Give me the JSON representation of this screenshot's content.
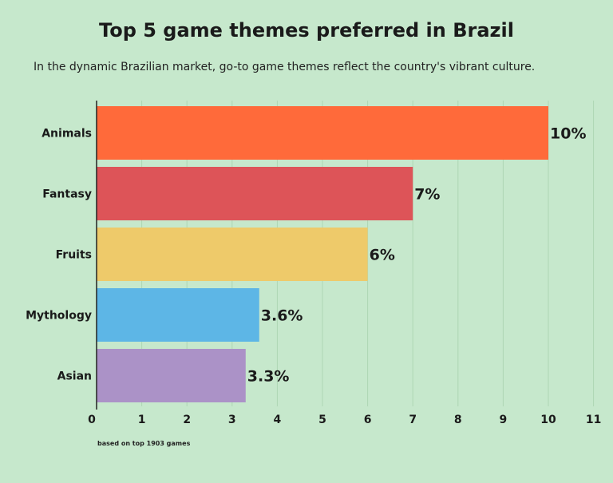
{
  "chart_data": {
    "type": "bar",
    "orientation": "horizontal",
    "title": "Top 5 game themes preferred in Brazil",
    "subtitle": "In the dynamic Brazilian market, go-to game themes reflect the country's vibrant culture.",
    "categories": [
      "Animals",
      "Fantasy",
      "Fruits",
      "Mythology",
      "Asian"
    ],
    "values": [
      10,
      7,
      6,
      3.6,
      3.3
    ],
    "value_labels": [
      "10%",
      "7%",
      "6%",
      "3.6%",
      "3.3%"
    ],
    "colors": [
      "#ff6a3a",
      "#dd5458",
      "#eeca6a",
      "#5db6e6",
      "#ab92c7"
    ],
    "xlim": [
      0,
      11
    ],
    "xticks": [
      "0",
      "1",
      "2",
      "3",
      "4",
      "5",
      "6",
      "7",
      "8",
      "9",
      "10",
      "11"
    ],
    "grid": true,
    "legend": "none",
    "footnote": "based on top 1903 games"
  }
}
